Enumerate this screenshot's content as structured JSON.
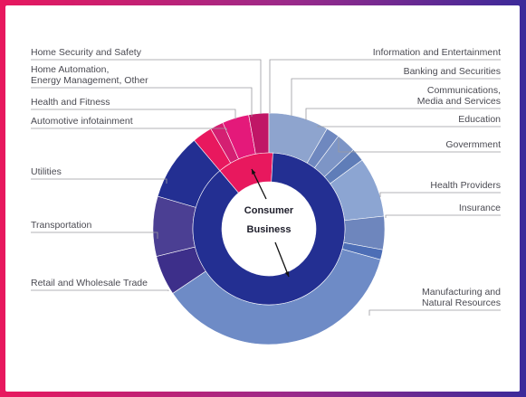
{
  "colors": {
    "consumer": "#e8185e",
    "business": "#232f92",
    "outer_blue": "#7b95c9",
    "outer_purple": "#3e2f8f",
    "leader": "#9a9aa0",
    "text": "#4a4a52"
  },
  "chart_data": {
    "type": "pie",
    "inner_ring": {
      "categories": [
        "Consumer",
        "Business"
      ],
      "values": [
        12,
        88
      ],
      "colors": [
        "#e8185e",
        "#232f92"
      ]
    },
    "outer_ring": {
      "categories": [
        "Home Security and Safety",
        "Home Automation, Energy Management, Other",
        "Health and Fitness",
        "Automotive infotainment",
        "Information and Entertainment",
        "Banking and Securities",
        "Communications, Media and Services",
        "Education",
        "Govermment",
        "Health Providers",
        "Insurance",
        "Manufacturing and Natural Resources",
        "Retail and Wholesale Trade",
        "Transportation",
        "Utilities"
      ],
      "values": [
        3,
        2,
        4,
        3,
        9,
        2,
        3,
        2,
        9,
        5,
        1.5,
        39,
        6,
        9,
        10
      ],
      "colors": [
        "#e8185e",
        "#d41f72",
        "#e4197a",
        "#c01666",
        "#8ea4ce",
        "#6f88bf",
        "#7d95c6",
        "#5f7db8",
        "#8ca5d2",
        "#6e86bd",
        "#4d6eb6",
        "#6e8bc6",
        "#3d2f8a",
        "#4b3f93",
        "#232f92"
      ]
    },
    "center_labels": [
      "Consumer",
      "Business"
    ],
    "legend": "none",
    "title": ""
  },
  "labels": {
    "left": [
      {
        "lines": [
          "Home Security and Safety"
        ]
      },
      {
        "lines": [
          "Home Automation,",
          "Energy Management, Other"
        ]
      },
      {
        "lines": [
          "Health and Fitness"
        ]
      },
      {
        "lines": [
          "Automotive infotainment"
        ]
      },
      {
        "lines": [
          "Utilities"
        ]
      },
      {
        "lines": [
          "Transportation"
        ]
      },
      {
        "lines": [
          "Retail and Wholesale Trade"
        ]
      }
    ],
    "right": [
      {
        "lines": [
          "Information and Entertainment"
        ]
      },
      {
        "lines": [
          "Banking and Securities"
        ]
      },
      {
        "lines": [
          "Communications,",
          "Media and Services"
        ]
      },
      {
        "lines": [
          "Education"
        ]
      },
      {
        "lines": [
          "Govermment"
        ]
      },
      {
        "lines": [
          "Health Providers"
        ]
      },
      {
        "lines": [
          "Insurance"
        ]
      },
      {
        "lines": [
          "Manufacturing and",
          "Natural Resources"
        ]
      }
    ]
  }
}
